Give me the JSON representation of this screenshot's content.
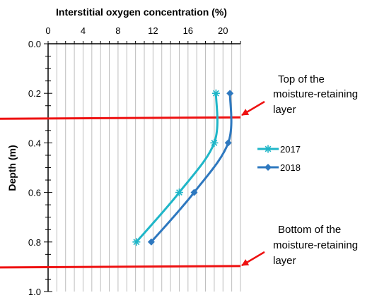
{
  "chart_data": {
    "type": "line",
    "title": "",
    "xlabel": "Interstitial oxygen concentration (%)",
    "ylabel": "Depth (m)",
    "x_axis_position": "top",
    "y_axis_inverted": true,
    "xlim": [
      0,
      22
    ],
    "ylim": [
      0,
      1.0
    ],
    "x_ticks": [
      "0",
      "4",
      "8",
      "12",
      "16",
      "20"
    ],
    "y_ticks": [
      "0.0",
      "0.2",
      "0.4",
      "0.6",
      "0.8",
      "1.0"
    ],
    "grid": "vertical gridlines every 1 unit",
    "legend_position": "right",
    "series": [
      {
        "name": "2017",
        "color": "#1fb6c8",
        "marker": "asterisk",
        "points": [
          {
            "x": 19.2,
            "y": 0.2
          },
          {
            "x": 19.0,
            "y": 0.4
          },
          {
            "x": 15.0,
            "y": 0.6
          },
          {
            "x": 10.1,
            "y": 0.8
          }
        ]
      },
      {
        "name": "2018",
        "color": "#2e78bf",
        "marker": "diamond",
        "points": [
          {
            "x": 20.8,
            "y": 0.2
          },
          {
            "x": 20.6,
            "y": 0.4
          },
          {
            "x": 16.7,
            "y": 0.6
          },
          {
            "x": 11.8,
            "y": 0.8
          }
        ]
      }
    ],
    "reference_lines": [
      {
        "label": "Top of the moisture-retaining layer",
        "y": 0.3,
        "color": "#ee1111"
      },
      {
        "label": "Bottom of the moisture-retaining layer",
        "y": 0.9,
        "color": "#ee1111"
      }
    ],
    "annotations": [
      {
        "lines": [
          "Top of the",
          "moisture-retaining",
          "layer"
        ]
      },
      {
        "lines": [
          "Bottom of the",
          "moisture-retaining",
          "layer"
        ]
      }
    ]
  }
}
